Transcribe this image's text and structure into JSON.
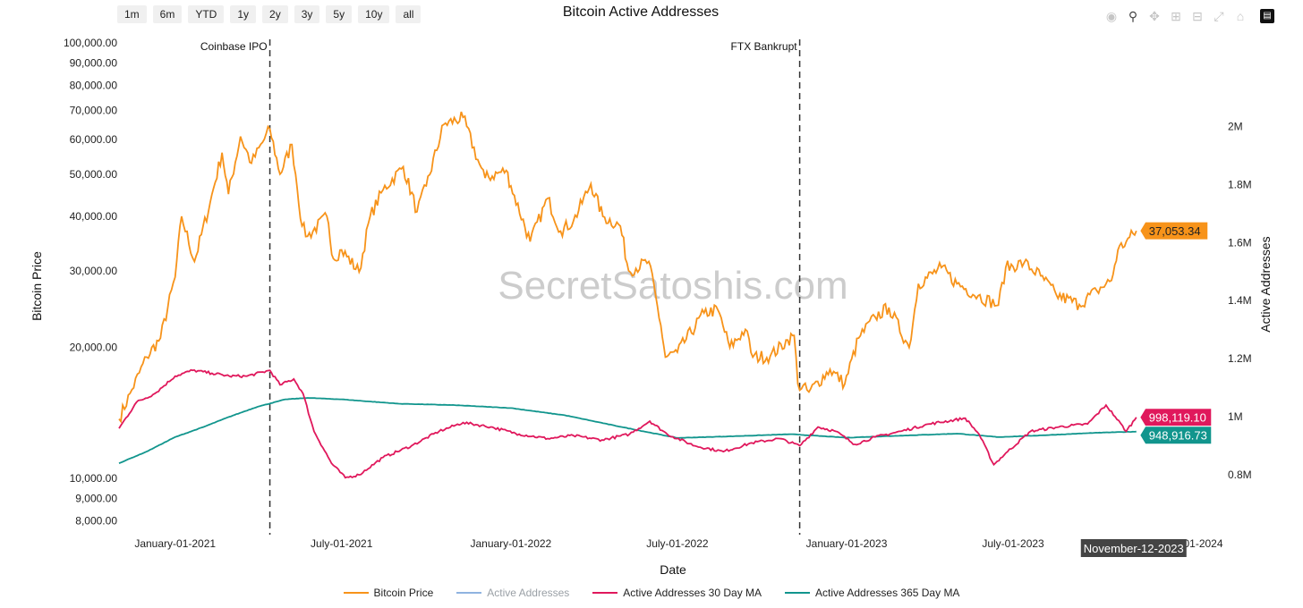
{
  "range_buttons": [
    "1m",
    "6m",
    "YTD",
    "1y",
    "2y",
    "3y",
    "5y",
    "10y",
    "all"
  ],
  "watermark": "SecretSatoshis.com",
  "modebar_icons": [
    "camera-icon",
    "zoom-icon",
    "pan-icon",
    "zoom-in-icon",
    "zoom-out-icon",
    "autoscale-icon",
    "home-icon",
    "plotly-logo-icon"
  ],
  "hover": {
    "date_label": "November-12-2023",
    "price_label": "37,053.34",
    "aa30_label": "998,119.10",
    "aa365_label": "948,916.73"
  },
  "chart_data": {
    "type": "line",
    "title": "Bitcoin Active Addresses",
    "xlabel": "Date",
    "ylabel_left": "Bitcoin Price",
    "ylabel_right": "Active Addresses",
    "x_range": [
      "2020-11-01",
      "2024-01-31"
    ],
    "x_ticks": [
      {
        "date": "2021-01-01",
        "label": "January-01-2021"
      },
      {
        "date": "2021-07-01",
        "label": "July-01-2021"
      },
      {
        "date": "2022-01-01",
        "label": "January-01-2022"
      },
      {
        "date": "2022-07-01",
        "label": "July-01-2022"
      },
      {
        "date": "2023-01-01",
        "label": "January-01-2023"
      },
      {
        "date": "2023-07-01",
        "label": "July-01-2023"
      },
      {
        "date": "2024-01-01",
        "label": "January-01-2024"
      }
    ],
    "y_left": {
      "scale": "log",
      "range": [
        7500,
        102000
      ],
      "ticks": [
        {
          "value": 100000,
          "label": "100,000.00"
        },
        {
          "value": 90000,
          "label": "90,000.00"
        },
        {
          "value": 80000,
          "label": "80,000.00"
        },
        {
          "value": 70000,
          "label": "70,000.00"
        },
        {
          "value": 60000,
          "label": "60,000.00"
        },
        {
          "value": 50000,
          "label": "50,000.00"
        },
        {
          "value": 40000,
          "label": "40,000.00"
        },
        {
          "value": 30000,
          "label": "30,000.00"
        },
        {
          "value": 20000,
          "label": "20,000.00"
        },
        {
          "value": 10000,
          "label": "10,000.00"
        },
        {
          "value": 9000,
          "label": "9,000.00"
        },
        {
          "value": 8000,
          "label": "8,000.00"
        }
      ]
    },
    "y_right": {
      "scale": "linear",
      "range": [
        600000,
        2300000
      ],
      "ticks": [
        {
          "value": 800000,
          "label": "0.8M"
        },
        {
          "value": 1000000,
          "label": "1M"
        },
        {
          "value": 1200000,
          "label": "1.2M"
        },
        {
          "value": 1400000,
          "label": "1.4M"
        },
        {
          "value": 1600000,
          "label": "1.6M"
        },
        {
          "value": 1800000,
          "label": "1.8M"
        },
        {
          "value": 2000000,
          "label": "2M"
        }
      ]
    },
    "annotations": [
      {
        "date": "2021-04-14",
        "label": "Coinbase IPO"
      },
      {
        "date": "2022-11-11",
        "label": "FTX Bankrupt"
      }
    ],
    "series": [
      {
        "name": "Bitcoin Price",
        "color": "#f7931a",
        "axis": "left",
        "visible": true,
        "points": [
          [
            "2020-11-01",
            13700
          ],
          [
            "2020-11-15",
            16000
          ],
          [
            "2020-12-01",
            19000
          ],
          [
            "2020-12-16",
            21000
          ],
          [
            "2021-01-01",
            29000
          ],
          [
            "2021-01-08",
            40000
          ],
          [
            "2021-01-22",
            31500
          ],
          [
            "2021-02-08",
            43000
          ],
          [
            "2021-02-21",
            56000
          ],
          [
            "2021-02-28",
            45000
          ],
          [
            "2021-03-13",
            61000
          ],
          [
            "2021-03-25",
            53000
          ],
          [
            "2021-04-14",
            63500
          ],
          [
            "2021-04-25",
            50000
          ],
          [
            "2021-05-08",
            58500
          ],
          [
            "2021-05-12",
            50000
          ],
          [
            "2021-05-19",
            38000
          ],
          [
            "2021-05-25",
            36000
          ],
          [
            "2021-06-15",
            40000
          ],
          [
            "2021-06-22",
            32000
          ],
          [
            "2021-07-01",
            33500
          ],
          [
            "2021-07-20",
            29800
          ],
          [
            "2021-08-01",
            40000
          ],
          [
            "2021-08-15",
            46000
          ],
          [
            "2021-09-06",
            52000
          ],
          [
            "2021-09-21",
            41000
          ],
          [
            "2021-10-01",
            47000
          ],
          [
            "2021-10-20",
            65000
          ],
          [
            "2021-11-10",
            67500
          ],
          [
            "2021-11-26",
            54000
          ],
          [
            "2021-12-04",
            49000
          ],
          [
            "2021-12-27",
            51000
          ],
          [
            "2022-01-01",
            47000
          ],
          [
            "2022-01-22",
            35000
          ],
          [
            "2022-02-10",
            44000
          ],
          [
            "2022-02-24",
            37000
          ],
          [
            "2022-03-10",
            39000
          ],
          [
            "2022-03-29",
            47500
          ],
          [
            "2022-04-11",
            40000
          ],
          [
            "2022-04-30",
            38000
          ],
          [
            "2022-05-09",
            30000
          ],
          [
            "2022-05-31",
            31500
          ],
          [
            "2022-06-13",
            22500
          ],
          [
            "2022-06-18",
            19000
          ],
          [
            "2022-07-01",
            19500
          ],
          [
            "2022-07-30",
            24000
          ],
          [
            "2022-08-14",
            24400
          ],
          [
            "2022-08-27",
            20000
          ],
          [
            "2022-09-13",
            22000
          ],
          [
            "2022-09-21",
            19000
          ],
          [
            "2022-10-10",
            19100
          ],
          [
            "2022-10-29",
            20800
          ],
          [
            "2022-11-05",
            21300
          ],
          [
            "2022-11-09",
            16500
          ],
          [
            "2022-11-21",
            15800
          ],
          [
            "2022-12-14",
            17800
          ],
          [
            "2022-12-30",
            16500
          ],
          [
            "2023-01-14",
            21000
          ],
          [
            "2023-02-01",
            23500
          ],
          [
            "2023-02-16",
            24700
          ],
          [
            "2023-03-10",
            20000
          ],
          [
            "2023-03-20",
            28000
          ],
          [
            "2023-04-14",
            30500
          ],
          [
            "2023-05-01",
            28000
          ],
          [
            "2023-05-24",
            26300
          ],
          [
            "2023-06-15",
            25000
          ],
          [
            "2023-06-23",
            30500
          ],
          [
            "2023-07-13",
            31300
          ],
          [
            "2023-07-31",
            29200
          ],
          [
            "2023-08-17",
            26400
          ],
          [
            "2023-09-11",
            25100
          ],
          [
            "2023-09-30",
            27000
          ],
          [
            "2023-10-16",
            28500
          ],
          [
            "2023-10-23",
            33500
          ],
          [
            "2023-11-01",
            35000
          ],
          [
            "2023-11-12",
            37053.34
          ]
        ]
      },
      {
        "name": "Active Addresses",
        "color": "#8fb3e0",
        "axis": "right",
        "visible": false,
        "points": []
      },
      {
        "name": "Active Addresses 30 Day MA",
        "color": "#e0185c",
        "axis": "right",
        "visible": true,
        "points": [
          [
            "2020-11-01",
            960000
          ],
          [
            "2020-11-20",
            1050000
          ],
          [
            "2020-12-10",
            1080000
          ],
          [
            "2021-01-01",
            1140000
          ],
          [
            "2021-01-20",
            1160000
          ],
          [
            "2021-02-10",
            1150000
          ],
          [
            "2021-03-01",
            1140000
          ],
          [
            "2021-03-20",
            1140000
          ],
          [
            "2021-04-14",
            1160000
          ],
          [
            "2021-04-25",
            1110000
          ],
          [
            "2021-05-10",
            1130000
          ],
          [
            "2021-05-20",
            1080000
          ],
          [
            "2021-06-01",
            950000
          ],
          [
            "2021-06-20",
            840000
          ],
          [
            "2021-07-05",
            790000
          ],
          [
            "2021-07-20",
            800000
          ],
          [
            "2021-08-15",
            860000
          ],
          [
            "2021-09-15",
            900000
          ],
          [
            "2021-10-15",
            950000
          ],
          [
            "2021-11-10",
            980000
          ],
          [
            "2021-12-10",
            965000
          ],
          [
            "2022-01-10",
            940000
          ],
          [
            "2022-02-10",
            925000
          ],
          [
            "2022-03-10",
            935000
          ],
          [
            "2022-04-10",
            920000
          ],
          [
            "2022-05-10",
            940000
          ],
          [
            "2022-06-01",
            985000
          ],
          [
            "2022-06-20",
            940000
          ],
          [
            "2022-07-20",
            900000
          ],
          [
            "2022-08-20",
            880000
          ],
          [
            "2022-09-20",
            910000
          ],
          [
            "2022-10-20",
            925000
          ],
          [
            "2022-11-11",
            900000
          ],
          [
            "2022-12-01",
            965000
          ],
          [
            "2022-12-20",
            950000
          ],
          [
            "2023-01-10",
            905000
          ],
          [
            "2023-02-01",
            930000
          ],
          [
            "2023-03-01",
            950000
          ],
          [
            "2023-04-01",
            975000
          ],
          [
            "2023-05-10",
            995000
          ],
          [
            "2023-05-25",
            940000
          ],
          [
            "2023-06-10",
            835000
          ],
          [
            "2023-06-25",
            880000
          ],
          [
            "2023-07-20",
            950000
          ],
          [
            "2023-08-20",
            965000
          ],
          [
            "2023-09-20",
            975000
          ],
          [
            "2023-10-10",
            1040000
          ],
          [
            "2023-10-20",
            1000000
          ],
          [
            "2023-11-01",
            950000
          ],
          [
            "2023-11-12",
            998119.1
          ]
        ]
      },
      {
        "name": "Active Addresses 365 Day MA",
        "color": "#11958d",
        "axis": "right",
        "visible": true,
        "points": [
          [
            "2020-11-01",
            840000
          ],
          [
            "2020-12-01",
            880000
          ],
          [
            "2021-01-01",
            930000
          ],
          [
            "2021-02-01",
            965000
          ],
          [
            "2021-03-01",
            1000000
          ],
          [
            "2021-04-01",
            1035000
          ],
          [
            "2021-05-01",
            1060000
          ],
          [
            "2021-05-25",
            1065000
          ],
          [
            "2021-07-01",
            1060000
          ],
          [
            "2021-09-01",
            1045000
          ],
          [
            "2021-11-01",
            1040000
          ],
          [
            "2022-01-01",
            1030000
          ],
          [
            "2022-03-01",
            1005000
          ],
          [
            "2022-05-01",
            965000
          ],
          [
            "2022-07-01",
            927000
          ],
          [
            "2022-09-01",
            933000
          ],
          [
            "2022-11-01",
            940000
          ],
          [
            "2023-01-01",
            928000
          ],
          [
            "2023-03-01",
            935000
          ],
          [
            "2023-05-01",
            942000
          ],
          [
            "2023-06-15",
            930000
          ],
          [
            "2023-08-01",
            936000
          ],
          [
            "2023-10-01",
            945000
          ],
          [
            "2023-11-12",
            948916.73
          ]
        ]
      }
    ]
  }
}
